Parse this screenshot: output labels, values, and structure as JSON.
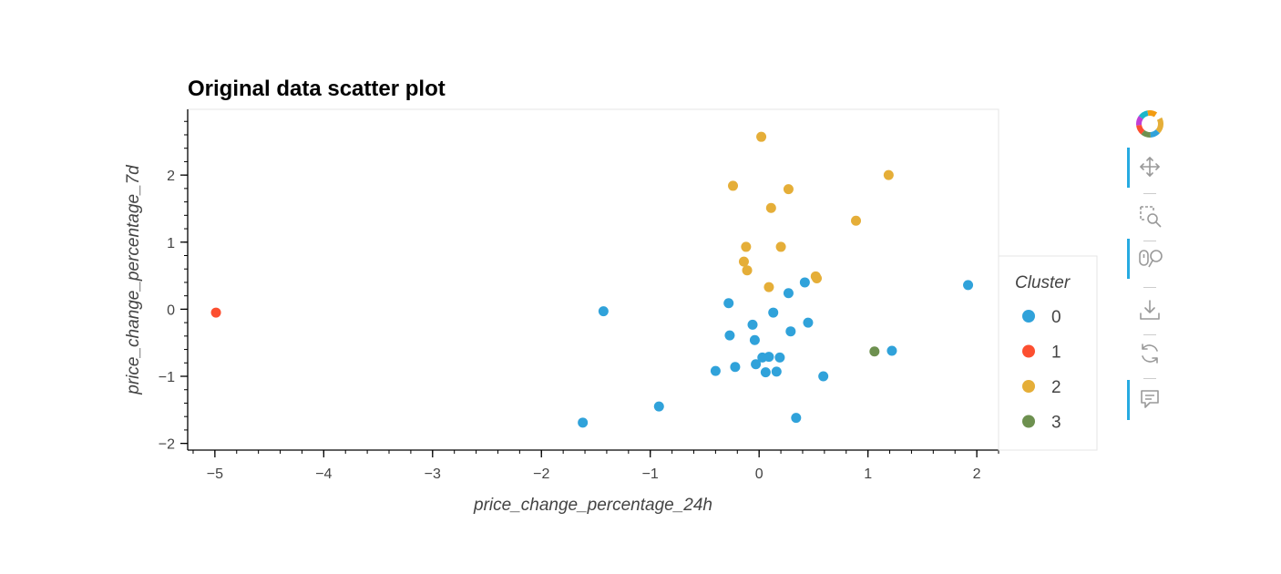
{
  "chart_data": {
    "type": "scatter",
    "title": "Original data scatter plot",
    "xlabel": "price_change_percentage_24h",
    "ylabel": "price_change_percentage_7d",
    "xlim": [
      -5.25,
      2.2
    ],
    "ylim": [
      -2.1,
      2.98
    ],
    "xticks": [
      -5,
      -4,
      -3,
      -2,
      -1,
      0,
      1,
      2
    ],
    "yticks": [
      -2,
      -1,
      0,
      1,
      2
    ],
    "legend_title": "Cluster",
    "legend_position": "right",
    "grid": false,
    "series": [
      {
        "name": "0",
        "color": "#30a2da",
        "points": [
          [
            -1.43,
            -0.03
          ],
          [
            -1.62,
            -1.69
          ],
          [
            -0.92,
            -1.45
          ],
          [
            -0.28,
            0.09
          ],
          [
            -0.27,
            -0.39
          ],
          [
            -0.22,
            -0.86
          ],
          [
            -0.4,
            -0.92
          ],
          [
            -0.06,
            -0.23
          ],
          [
            -0.04,
            -0.46
          ],
          [
            -0.03,
            -0.82
          ],
          [
            0.03,
            -0.72
          ],
          [
            0.06,
            -0.94
          ],
          [
            0.09,
            -0.71
          ],
          [
            0.13,
            -0.05
          ],
          [
            0.16,
            -0.93
          ],
          [
            0.19,
            -0.72
          ],
          [
            0.27,
            0.24
          ],
          [
            0.29,
            -0.33
          ],
          [
            0.34,
            -1.62
          ],
          [
            0.42,
            0.4
          ],
          [
            0.45,
            -0.2
          ],
          [
            0.59,
            -1.0
          ],
          [
            1.22,
            -0.62
          ],
          [
            1.92,
            0.36
          ]
        ]
      },
      {
        "name": "1",
        "color": "#fc4f30",
        "points": [
          [
            -4.99,
            -0.05
          ]
        ]
      },
      {
        "name": "2",
        "color": "#e5ae38",
        "points": [
          [
            0.02,
            2.57
          ],
          [
            -0.24,
            1.84
          ],
          [
            0.27,
            1.79
          ],
          [
            0.11,
            1.51
          ],
          [
            1.19,
            2.0
          ],
          [
            0.89,
            1.32
          ],
          [
            -0.12,
            0.93
          ],
          [
            0.2,
            0.93
          ],
          [
            -0.14,
            0.71
          ],
          [
            -0.11,
            0.58
          ],
          [
            0.52,
            0.49
          ],
          [
            0.53,
            0.46
          ],
          [
            0.09,
            0.33
          ]
        ]
      },
      {
        "name": "3",
        "color": "#6d904f",
        "points": [
          [
            1.06,
            -0.63
          ]
        ]
      }
    ]
  },
  "toolbar": {
    "tools": [
      {
        "name": "pan-tool",
        "icon": "move-arrows-icon",
        "active": true
      },
      {
        "name": "box-zoom-tool",
        "icon": "box-zoom-icon",
        "active": false
      },
      {
        "name": "wheel-zoom-tool",
        "icon": "wheel-zoom-icon",
        "active": true
      },
      {
        "name": "save-tool",
        "icon": "download-icon",
        "active": false
      },
      {
        "name": "reset-tool",
        "icon": "reset-icon",
        "active": false
      },
      {
        "name": "hover-tool",
        "icon": "hover-comment-icon",
        "active": true
      }
    ],
    "accent_color": "#26aae1"
  }
}
